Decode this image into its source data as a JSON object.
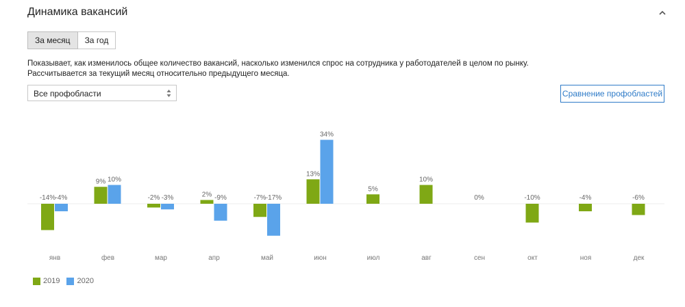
{
  "header": {
    "title": "Динамика вакансий"
  },
  "tabs": [
    {
      "label": "За месяц",
      "active": true
    },
    {
      "label": "За год",
      "active": false
    }
  ],
  "description": {
    "line1": "Показывает, как изменилось общее количество вакансий, насколько изменился спрос на сотрудника у работодателей в целом по рынку.",
    "line2": "Рассчитывается за текущий месяц относительно предыдущего месяца."
  },
  "filter": {
    "selected": "Все профобласти"
  },
  "compare_button": {
    "label": "Сравнение профобластей"
  },
  "icons": {
    "collapse": "chevron-up-icon",
    "select": "select-arrows-icon"
  },
  "chart_data": {
    "type": "bar",
    "categories": [
      "янв",
      "фев",
      "мар",
      "апр",
      "май",
      "июн",
      "июл",
      "авг",
      "сен",
      "окт",
      "ноя",
      "дек"
    ],
    "series": [
      {
        "name": "2019",
        "color": "#7fa815",
        "values": [
          -14,
          9,
          -2,
          2,
          -7,
          13,
          5,
          10,
          0,
          -10,
          -4,
          -6
        ]
      },
      {
        "name": "2020",
        "color": "#5aa3ea",
        "values": [
          -4,
          10,
          -3,
          -9,
          -17,
          34,
          null,
          null,
          null,
          null,
          null,
          null
        ]
      }
    ],
    "labels": [
      [
        "-14%",
        "9%",
        "-2%",
        "2%",
        "-7%",
        "13%",
        "5%",
        "10%",
        "0%",
        "-10%",
        "-4%",
        "-6%"
      ],
      [
        "-4%",
        "10%",
        "-3%",
        "-9%",
        "-17%",
        "34%",
        "",
        "",
        "",
        "",
        "",
        ""
      ]
    ],
    "ylim": [
      -20,
      36
    ],
    "legend": "bottom-left"
  }
}
